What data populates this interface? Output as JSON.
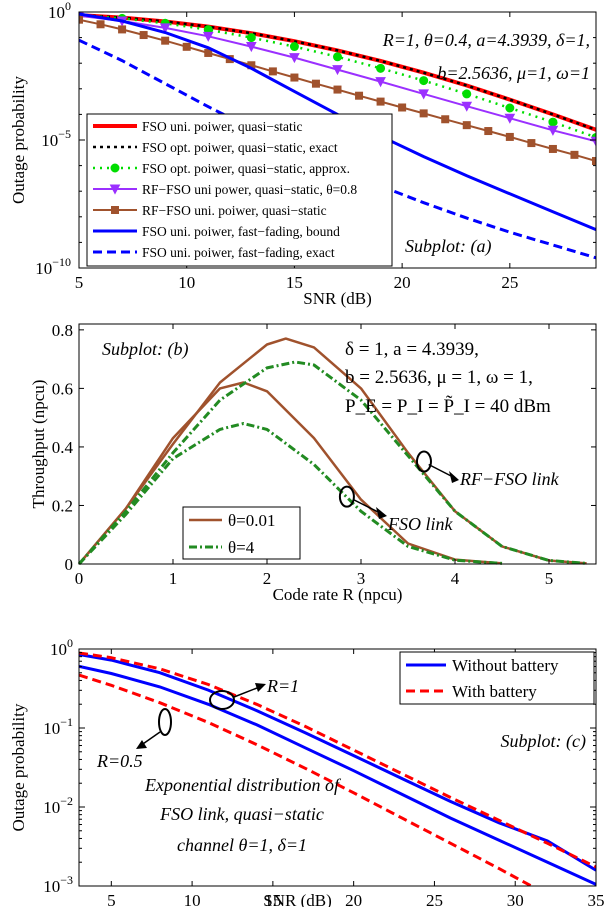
{
  "chart_data": [
    {
      "type": "line",
      "subplot_label": "Subplot: (a)",
      "xlabel": "SNR (dB)",
      "ylabel": "Outage probability",
      "xlim": [
        5,
        29
      ],
      "ylim_log10": [
        -10,
        0
      ],
      "yscale": "log",
      "xticks": [
        "5",
        "10",
        "15",
        "20",
        "25"
      ],
      "yticks": [
        {
          "base": "10",
          "exp": "0",
          "value": 0
        },
        {
          "base": "10",
          "exp": "−5",
          "value": -5
        },
        {
          "base": "10",
          "exp": "−10",
          "value": -10
        }
      ],
      "annotation_lines": [
        "R=1, θ=0.4, a=4.3939, δ=1,",
        "b=2.5636, μ=1, ω=1"
      ],
      "legend_placement": "left-middle",
      "series": [
        {
          "name": "FSO uni. poiwer, quasi−static",
          "color": "#ff0000",
          "style": "solid",
          "width": 4,
          "x": [
            5,
            7,
            9,
            11,
            13,
            15,
            17,
            19,
            21,
            23,
            25,
            27,
            29
          ],
          "log10_y": [
            -0.12,
            -0.22,
            -0.37,
            -0.57,
            -0.83,
            -1.14,
            -1.5,
            -1.91,
            -2.37,
            -2.87,
            -3.42,
            -4.0,
            -4.6
          ]
        },
        {
          "name": "FSO opt. poiwer, quasi−static, exact",
          "color": "#000000",
          "style": "dotted",
          "width": 2.5,
          "x": [
            5,
            7,
            9,
            11,
            13,
            15,
            17,
            19,
            21,
            23,
            25,
            27,
            29
          ],
          "log10_y": [
            -0.12,
            -0.22,
            -0.37,
            -0.57,
            -0.83,
            -1.14,
            -1.5,
            -1.91,
            -2.37,
            -2.87,
            -3.42,
            -4.0,
            -4.6
          ]
        },
        {
          "name": "FSO opt. poiwer, quasi−static, approx.",
          "color": "#00dd00",
          "style": "dotted-marker",
          "marker": "circle",
          "width": 2.5,
          "x": [
            5,
            7,
            9,
            11,
            13,
            15,
            17,
            19,
            21,
            23,
            25,
            27,
            29
          ],
          "log10_y": [
            -0.12,
            -0.25,
            -0.44,
            -0.69,
            -1.0,
            -1.35,
            -1.75,
            -2.2,
            -2.68,
            -3.2,
            -3.75,
            -4.3,
            -4.9
          ]
        },
        {
          "name": "RF−FSO uni power, quasi−static, θ=0.8",
          "color": "#9b30ff",
          "style": "solid-marker",
          "marker": "triangle-down",
          "width": 2,
          "x": [
            5,
            7,
            9,
            11,
            13,
            15,
            17,
            19,
            21,
            23,
            25,
            27,
            29
          ],
          "log10_y": [
            -0.15,
            -0.35,
            -0.62,
            -0.95,
            -1.35,
            -1.78,
            -2.25,
            -2.72,
            -3.2,
            -3.68,
            -4.15,
            -4.62,
            -5.05
          ]
        },
        {
          "name": "RF−FSO uni. poiwer, quasi−static",
          "color": "#a0522d",
          "style": "solid-marker",
          "marker": "square",
          "width": 2,
          "x": [
            5,
            6,
            7,
            8,
            9,
            10,
            11,
            12,
            13,
            14,
            15,
            16,
            17,
            18,
            19,
            20,
            21,
            22,
            23,
            24,
            25,
            26,
            27,
            28,
            29
          ],
          "log10_y": [
            -0.3,
            -0.48,
            -0.68,
            -0.9,
            -1.12,
            -1.36,
            -1.6,
            -1.84,
            -2.08,
            -2.32,
            -2.56,
            -2.8,
            -3.03,
            -3.27,
            -3.5,
            -3.73,
            -3.96,
            -4.19,
            -4.42,
            -4.65,
            -4.88,
            -5.12,
            -5.35,
            -5.58,
            -5.82
          ]
        },
        {
          "name": "FSO uni. poiwer, fast−fading, bound",
          "color": "#0000ff",
          "style": "solid",
          "width": 3,
          "x": [
            5,
            7,
            9,
            11,
            13,
            15,
            17,
            19,
            21,
            23,
            25,
            27,
            29
          ],
          "log10_y": [
            -0.08,
            -0.35,
            -0.8,
            -1.4,
            -2.2,
            -3.1,
            -4.0,
            -4.85,
            -5.65,
            -6.4,
            -7.1,
            -7.8,
            -8.5
          ]
        },
        {
          "name": "FSO uni. poiwer, fast−fading, exact",
          "color": "#0000ff",
          "style": "dashed",
          "width": 3,
          "x": [
            5,
            7,
            9,
            11,
            13,
            15,
            17,
            19,
            21,
            23,
            25,
            27,
            29
          ],
          "log10_y": [
            -1.1,
            -1.9,
            -2.8,
            -3.7,
            -4.55,
            -5.35,
            -6.1,
            -6.8,
            -7.45,
            -8.05,
            -8.6,
            -9.1,
            -9.6
          ]
        }
      ]
    },
    {
      "type": "line",
      "subplot_label": "Subplot: (b)",
      "xlabel": "Code rate R (npcu)",
      "ylabel": "Throughput (npcu)",
      "xlim": [
        0,
        5.5
      ],
      "ylim": [
        0,
        0.82
      ],
      "xticks": [
        "0",
        "1",
        "2",
        "3",
        "4",
        "5"
      ],
      "yticks": [
        "0",
        "0.2",
        "0.4",
        "0.6",
        "0.8"
      ],
      "annotation_lines": [
        "δ = 1, a = 4.3939,",
        "b = 2.5636, μ = 1, ω = 1,",
        "P_E = P_I = P̃_I = 40 dBm"
      ],
      "link_labels": [
        "RF−FSO link",
        "FSO link"
      ],
      "legend_placement": "bottom-left",
      "series": [
        {
          "name": "θ=0.01",
          "color": "#a0522d",
          "style": "solid",
          "width": 2.5,
          "x": [
            0,
            0.5,
            1.0,
            1.5,
            2.0,
            2.2,
            2.5,
            3.0,
            3.5,
            4.0,
            4.5,
            5.0,
            5.4
          ],
          "y": [
            0,
            0.19,
            0.41,
            0.62,
            0.75,
            0.77,
            0.74,
            0.6,
            0.38,
            0.18,
            0.06,
            0.012,
            0.002
          ]
        },
        {
          "name": "",
          "color": "#a0522d",
          "style": "solid",
          "width": 2.5,
          "x": [
            0,
            0.5,
            1.0,
            1.5,
            1.75,
            2.0,
            2.5,
            3.0,
            3.5,
            4.0,
            4.5
          ],
          "y": [
            0,
            0.19,
            0.43,
            0.6,
            0.62,
            0.59,
            0.43,
            0.22,
            0.07,
            0.015,
            0.002
          ]
        },
        {
          "name": "θ=4",
          "color": "#228b22",
          "style": "dash-dot",
          "width": 3,
          "x": [
            0,
            0.5,
            1.0,
            1.5,
            2.0,
            2.3,
            2.5,
            3.0,
            3.5,
            4.0,
            4.5,
            5.0,
            5.4
          ],
          "y": [
            0,
            0.18,
            0.38,
            0.56,
            0.67,
            0.69,
            0.68,
            0.56,
            0.37,
            0.18,
            0.06,
            0.012,
            0.002
          ]
        },
        {
          "name": "",
          "color": "#228b22",
          "style": "dash-dot",
          "width": 3,
          "x": [
            0,
            0.5,
            1.0,
            1.5,
            1.75,
            2.0,
            2.5,
            3.0,
            3.5,
            4.0,
            4.5
          ],
          "y": [
            0,
            0.17,
            0.36,
            0.46,
            0.48,
            0.46,
            0.34,
            0.18,
            0.06,
            0.013,
            0.002
          ]
        }
      ]
    },
    {
      "type": "line",
      "subplot_label": "Subplot: (c)",
      "xlabel": "SNR (dB)",
      "ylabel": "Outage probability",
      "xlim": [
        3,
        35
      ],
      "ylim_log10": [
        -3,
        0
      ],
      "yscale": "log",
      "xticks": [
        "5",
        "10",
        "15",
        "20",
        "25",
        "30",
        "35"
      ],
      "yticks": [
        {
          "base": "10",
          "exp": "0",
          "value": 0
        },
        {
          "base": "10",
          "exp": "−1",
          "value": -1
        },
        {
          "base": "10",
          "exp": "−2",
          "value": -2
        },
        {
          "base": "10",
          "exp": "−3",
          "value": -3
        }
      ],
      "rate_labels": [
        "R=1",
        "R=0.5"
      ],
      "annotation_lines": [
        "Exponential distribution of",
        "FSO link, quasi−static",
        "channel  θ=1, δ=1"
      ],
      "legend_placement": "top-right",
      "series": [
        {
          "name": "Without battery",
          "color": "#0000ff",
          "style": "solid",
          "width": 3,
          "x": [
            3,
            5,
            8,
            11,
            14,
            17,
            20,
            23,
            26,
            29,
            32,
            35
          ],
          "log10_y": [
            -0.07,
            -0.14,
            -0.3,
            -0.52,
            -0.78,
            -1.06,
            -1.35,
            -1.64,
            -1.93,
            -2.2,
            -2.43,
            -2.8
          ]
        },
        {
          "name": "",
          "color": "#0000ff",
          "style": "solid",
          "width": 3,
          "x": [
            3,
            5,
            8,
            11,
            14,
            17,
            20,
            23,
            26,
            29,
            32,
            35
          ],
          "log10_y": [
            -0.22,
            -0.31,
            -0.48,
            -0.7,
            -0.96,
            -1.25,
            -1.54,
            -1.84,
            -2.14,
            -2.42,
            -2.7,
            -2.98
          ]
        },
        {
          "name": "With battery",
          "color": "#ff0000",
          "style": "dashed",
          "width": 3,
          "x": [
            3,
            5,
            8,
            11,
            14,
            17,
            20,
            23,
            26,
            29,
            32,
            35
          ],
          "log10_y": [
            -0.05,
            -0.11,
            -0.25,
            -0.45,
            -0.7,
            -0.98,
            -1.28,
            -1.58,
            -1.88,
            -2.17,
            -2.46,
            -2.76
          ]
        },
        {
          "name": "",
          "color": "#ff0000",
          "style": "dashed",
          "width": 3,
          "x": [
            3,
            5,
            8,
            11,
            14,
            17,
            20,
            23,
            26,
            29,
            31
          ],
          "log10_y": [
            -0.33,
            -0.46,
            -0.68,
            -0.93,
            -1.21,
            -1.51,
            -1.82,
            -2.14,
            -2.46,
            -2.78,
            -3.0
          ]
        }
      ]
    }
  ]
}
